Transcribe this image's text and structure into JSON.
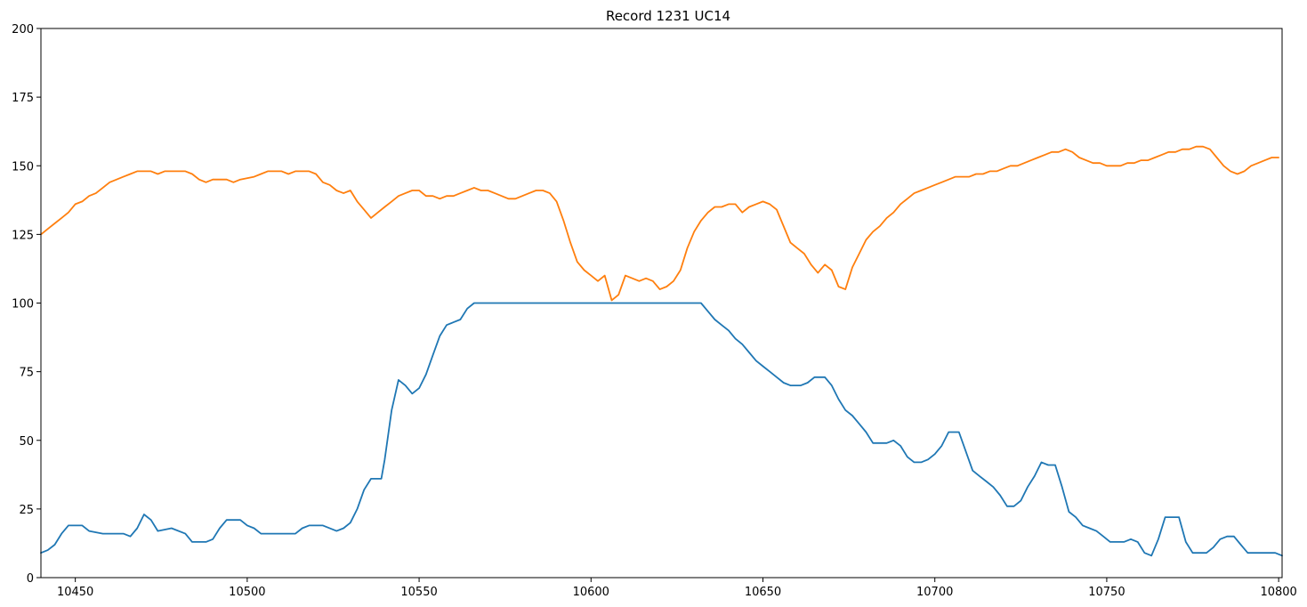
{
  "chart_data": {
    "type": "line",
    "title": "Record 1231 UC14",
    "xlabel": "",
    "ylabel": "",
    "xlim": [
      10440,
      10801
    ],
    "ylim": [
      0,
      200
    ],
    "xticks": [
      10450,
      10500,
      10550,
      10600,
      10650,
      10700,
      10750,
      10800
    ],
    "xtick_labels": [
      "10450",
      "10500",
      "10550",
      "10600",
      "10650",
      "10700",
      "10750",
      "10800"
    ],
    "yticks": [
      0,
      25,
      50,
      75,
      100,
      125,
      150,
      175,
      200
    ],
    "ytick_labels": [
      "0",
      "25",
      "50",
      "75",
      "100",
      "125",
      "150",
      "175",
      "200"
    ],
    "grid": false,
    "legend": "none",
    "series": [
      {
        "color": "#1f77b4",
        "points": [
          [
            10440,
            9
          ],
          [
            10442,
            10
          ],
          [
            10444,
            12
          ],
          [
            10446,
            16
          ],
          [
            10448,
            19
          ],
          [
            10452,
            19
          ],
          [
            10454,
            17
          ],
          [
            10458,
            16
          ],
          [
            10464,
            16
          ],
          [
            10466,
            15
          ],
          [
            10468,
            18
          ],
          [
            10470,
            23
          ],
          [
            10472,
            21
          ],
          [
            10474,
            17
          ],
          [
            10478,
            18
          ],
          [
            10482,
            16
          ],
          [
            10484,
            13
          ],
          [
            10488,
            13
          ],
          [
            10490,
            14
          ],
          [
            10492,
            18
          ],
          [
            10494,
            21
          ],
          [
            10498,
            21
          ],
          [
            10500,
            19
          ],
          [
            10502,
            18
          ],
          [
            10504,
            16
          ],
          [
            10514,
            16
          ],
          [
            10516,
            18
          ],
          [
            10518,
            19
          ],
          [
            10522,
            19
          ],
          [
            10526,
            17
          ],
          [
            10528,
            18
          ],
          [
            10530,
            20
          ],
          [
            10532,
            25
          ],
          [
            10534,
            32
          ],
          [
            10536,
            36
          ],
          [
            10539,
            36
          ],
          [
            10540,
            43
          ],
          [
            10542,
            61
          ],
          [
            10544,
            72
          ],
          [
            10546,
            70
          ],
          [
            10548,
            67
          ],
          [
            10550,
            69
          ],
          [
            10552,
            74
          ],
          [
            10554,
            81
          ],
          [
            10556,
            88
          ],
          [
            10558,
            92
          ],
          [
            10560,
            93
          ],
          [
            10562,
            94
          ],
          [
            10564,
            98
          ],
          [
            10566,
            100
          ],
          [
            10632,
            100
          ],
          [
            10634,
            97
          ],
          [
            10636,
            94
          ],
          [
            10638,
            92
          ],
          [
            10640,
            90
          ],
          [
            10642,
            87
          ],
          [
            10644,
            85
          ],
          [
            10646,
            82
          ],
          [
            10648,
            79
          ],
          [
            10650,
            77
          ],
          [
            10652,
            75
          ],
          [
            10654,
            73
          ],
          [
            10656,
            71
          ],
          [
            10658,
            70
          ],
          [
            10661,
            70
          ],
          [
            10663,
            71
          ],
          [
            10665,
            73
          ],
          [
            10668,
            73
          ],
          [
            10670,
            70
          ],
          [
            10672,
            65
          ],
          [
            10674,
            61
          ],
          [
            10676,
            59
          ],
          [
            10678,
            56
          ],
          [
            10680,
            53
          ],
          [
            10682,
            49
          ],
          [
            10686,
            49
          ],
          [
            10688,
            50
          ],
          [
            10690,
            48
          ],
          [
            10692,
            44
          ],
          [
            10694,
            42
          ],
          [
            10696,
            42
          ],
          [
            10698,
            43
          ],
          [
            10700,
            45
          ],
          [
            10702,
            48
          ],
          [
            10704,
            53
          ],
          [
            10707,
            53
          ],
          [
            10709,
            46
          ],
          [
            10711,
            39
          ],
          [
            10713,
            37
          ],
          [
            10715,
            35
          ],
          [
            10717,
            33
          ],
          [
            10719,
            30
          ],
          [
            10721,
            26
          ],
          [
            10723,
            26
          ],
          [
            10725,
            28
          ],
          [
            10727,
            33
          ],
          [
            10729,
            37
          ],
          [
            10731,
            42
          ],
          [
            10733,
            41
          ],
          [
            10735,
            41
          ],
          [
            10737,
            33
          ],
          [
            10739,
            24
          ],
          [
            10741,
            22
          ],
          [
            10743,
            19
          ],
          [
            10745,
            18
          ],
          [
            10747,
            17
          ],
          [
            10749,
            15
          ],
          [
            10751,
            13
          ],
          [
            10755,
            13
          ],
          [
            10757,
            14
          ],
          [
            10759,
            13
          ],
          [
            10761,
            9
          ],
          [
            10763,
            8
          ],
          [
            10765,
            14
          ],
          [
            10767,
            22
          ],
          [
            10771,
            22
          ],
          [
            10773,
            13
          ],
          [
            10775,
            9
          ],
          [
            10779,
            9
          ],
          [
            10781,
            11
          ],
          [
            10783,
            14
          ],
          [
            10785,
            15
          ],
          [
            10787,
            15
          ],
          [
            10789,
            12
          ],
          [
            10791,
            9
          ],
          [
            10799,
            9
          ],
          [
            10801,
            8
          ]
        ]
      },
      {
        "color": "#ff7f0e",
        "points": [
          [
            10440,
            125
          ],
          [
            10442,
            127
          ],
          [
            10444,
            129
          ],
          [
            10446,
            131
          ],
          [
            10448,
            133
          ],
          [
            10450,
            136
          ],
          [
            10452,
            137
          ],
          [
            10454,
            139
          ],
          [
            10456,
            140
          ],
          [
            10458,
            142
          ],
          [
            10460,
            144
          ],
          [
            10462,
            145
          ],
          [
            10464,
            146
          ],
          [
            10466,
            147
          ],
          [
            10468,
            148
          ],
          [
            10472,
            148
          ],
          [
            10474,
            147
          ],
          [
            10476,
            148
          ],
          [
            10480,
            148
          ],
          [
            10482,
            148
          ],
          [
            10484,
            147
          ],
          [
            10486,
            145
          ],
          [
            10488,
            144
          ],
          [
            10490,
            145
          ],
          [
            10494,
            145
          ],
          [
            10496,
            144
          ],
          [
            10498,
            145
          ],
          [
            10502,
            146
          ],
          [
            10504,
            147
          ],
          [
            10506,
            148
          ],
          [
            10510,
            148
          ],
          [
            10512,
            147
          ],
          [
            10514,
            148
          ],
          [
            10518,
            148
          ],
          [
            10520,
            147
          ],
          [
            10522,
            144
          ],
          [
            10524,
            143
          ],
          [
            10526,
            141
          ],
          [
            10528,
            140
          ],
          [
            10530,
            141
          ],
          [
            10532,
            137
          ],
          [
            10534,
            134
          ],
          [
            10536,
            131
          ],
          [
            10538,
            133
          ],
          [
            10540,
            135
          ],
          [
            10542,
            137
          ],
          [
            10544,
            139
          ],
          [
            10546,
            140
          ],
          [
            10548,
            141
          ],
          [
            10550,
            141
          ],
          [
            10552,
            139
          ],
          [
            10554,
            139
          ],
          [
            10556,
            138
          ],
          [
            10558,
            139
          ],
          [
            10560,
            139
          ],
          [
            10562,
            140
          ],
          [
            10564,
            141
          ],
          [
            10566,
            142
          ],
          [
            10568,
            141
          ],
          [
            10570,
            141
          ],
          [
            10572,
            140
          ],
          [
            10574,
            139
          ],
          [
            10576,
            138
          ],
          [
            10578,
            138
          ],
          [
            10580,
            139
          ],
          [
            10582,
            140
          ],
          [
            10584,
            141
          ],
          [
            10586,
            141
          ],
          [
            10588,
            140
          ],
          [
            10590,
            137
          ],
          [
            10592,
            130
          ],
          [
            10594,
            122
          ],
          [
            10596,
            115
          ],
          [
            10598,
            112
          ],
          [
            10600,
            110
          ],
          [
            10602,
            108
          ],
          [
            10604,
            110
          ],
          [
            10606,
            101
          ],
          [
            10608,
            103
          ],
          [
            10610,
            110
          ],
          [
            10612,
            109
          ],
          [
            10614,
            108
          ],
          [
            10616,
            109
          ],
          [
            10618,
            108
          ],
          [
            10620,
            105
          ],
          [
            10622,
            106
          ],
          [
            10624,
            108
          ],
          [
            10626,
            112
          ],
          [
            10628,
            120
          ],
          [
            10630,
            126
          ],
          [
            10632,
            130
          ],
          [
            10634,
            133
          ],
          [
            10636,
            135
          ],
          [
            10638,
            135
          ],
          [
            10640,
            136
          ],
          [
            10642,
            136
          ],
          [
            10644,
            133
          ],
          [
            10646,
            135
          ],
          [
            10648,
            136
          ],
          [
            10650,
            137
          ],
          [
            10652,
            136
          ],
          [
            10654,
            134
          ],
          [
            10656,
            128
          ],
          [
            10658,
            122
          ],
          [
            10660,
            120
          ],
          [
            10662,
            118
          ],
          [
            10664,
            114
          ],
          [
            10666,
            111
          ],
          [
            10668,
            114
          ],
          [
            10670,
            112
          ],
          [
            10672,
            106
          ],
          [
            10674,
            105
          ],
          [
            10676,
            113
          ],
          [
            10678,
            118
          ],
          [
            10680,
            123
          ],
          [
            10682,
            126
          ],
          [
            10684,
            128
          ],
          [
            10686,
            131
          ],
          [
            10688,
            133
          ],
          [
            10690,
            136
          ],
          [
            10692,
            138
          ],
          [
            10694,
            140
          ],
          [
            10696,
            141
          ],
          [
            10698,
            142
          ],
          [
            10700,
            143
          ],
          [
            10702,
            144
          ],
          [
            10704,
            145
          ],
          [
            10706,
            146
          ],
          [
            10708,
            146
          ],
          [
            10710,
            146
          ],
          [
            10712,
            147
          ],
          [
            10714,
            147
          ],
          [
            10716,
            148
          ],
          [
            10718,
            148
          ],
          [
            10720,
            149
          ],
          [
            10722,
            150
          ],
          [
            10724,
            150
          ],
          [
            10726,
            151
          ],
          [
            10728,
            152
          ],
          [
            10730,
            153
          ],
          [
            10732,
            154
          ],
          [
            10734,
            155
          ],
          [
            10736,
            155
          ],
          [
            10738,
            156
          ],
          [
            10740,
            155
          ],
          [
            10742,
            153
          ],
          [
            10744,
            152
          ],
          [
            10746,
            151
          ],
          [
            10748,
            151
          ],
          [
            10750,
            150
          ],
          [
            10752,
            150
          ],
          [
            10754,
            150
          ],
          [
            10756,
            151
          ],
          [
            10758,
            151
          ],
          [
            10760,
            152
          ],
          [
            10762,
            152
          ],
          [
            10764,
            153
          ],
          [
            10766,
            154
          ],
          [
            10768,
            155
          ],
          [
            10770,
            155
          ],
          [
            10772,
            156
          ],
          [
            10774,
            156
          ],
          [
            10776,
            157
          ],
          [
            10778,
            157
          ],
          [
            10780,
            156
          ],
          [
            10782,
            153
          ],
          [
            10784,
            150
          ],
          [
            10786,
            148
          ],
          [
            10788,
            147
          ],
          [
            10790,
            148
          ],
          [
            10792,
            150
          ],
          [
            10794,
            151
          ],
          [
            10796,
            152
          ],
          [
            10798,
            153
          ],
          [
            10800,
            153
          ]
        ]
      }
    ]
  }
}
